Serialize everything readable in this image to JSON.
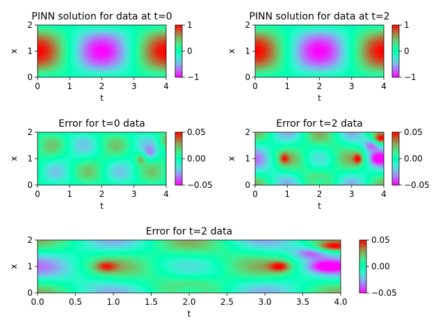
{
  "chart_data": [
    {
      "type": "heatmap",
      "title": "PINN solution for data at t=0",
      "xlabel": "t",
      "ylabel": "x",
      "field": "solution",
      "xlim": [
        0,
        4
      ],
      "ylim": [
        0,
        2
      ],
      "xticks": [
        "0",
        "1",
        "2",
        "3",
        "4"
      ],
      "yticks": [
        "0",
        "1",
        "2"
      ],
      "clim": [
        -1,
        1
      ],
      "cticks": [
        "−1",
        "0",
        "1"
      ],
      "colormap": "rainbow"
    },
    {
      "type": "heatmap",
      "title": "PINN solution for data at t=2",
      "xlabel": "t",
      "ylabel": "x",
      "field": "solution",
      "xlim": [
        0,
        4
      ],
      "ylim": [
        0,
        2
      ],
      "xticks": [
        "0",
        "1",
        "2",
        "3",
        "4"
      ],
      "yticks": [
        "0",
        "1",
        "2"
      ],
      "clim": [
        -1,
        1
      ],
      "cticks": [
        "−1",
        "0",
        "1"
      ],
      "colormap": "rainbow"
    },
    {
      "type": "heatmap",
      "title": "Error for t=0 data",
      "xlabel": "t",
      "ylabel": "x",
      "field": "error_t0",
      "xlim": [
        0,
        4
      ],
      "ylim": [
        0,
        2
      ],
      "xticks": [
        "0",
        "1",
        "2",
        "3",
        "4"
      ],
      "yticks": [
        "0",
        "1",
        "2"
      ],
      "clim": [
        -0.05,
        0.05
      ],
      "cticks": [
        "−0.05",
        "0.00",
        "0.05"
      ],
      "colormap": "rainbow"
    },
    {
      "type": "heatmap",
      "title": "Error for t=2 data",
      "xlabel": "t",
      "ylabel": "x",
      "field": "error_t2",
      "xlim": [
        0,
        4
      ],
      "ylim": [
        0,
        2
      ],
      "xticks": [
        "0",
        "1",
        "2",
        "3",
        "4"
      ],
      "yticks": [
        "0",
        "1",
        "2"
      ],
      "clim": [
        -0.05,
        0.05
      ],
      "cticks": [
        "−0.05",
        "0.00",
        "0.05"
      ],
      "colormap": "rainbow"
    },
    {
      "type": "heatmap",
      "title": "Error for t=2 data",
      "xlabel": "t",
      "ylabel": "x",
      "field": "error_t2",
      "xlim": [
        0,
        4
      ],
      "ylim": [
        0,
        2
      ],
      "xticks": [
        "0.0",
        "0.5",
        "1.0",
        "1.5",
        "2.0",
        "2.5",
        "3.0",
        "3.5",
        "4.0"
      ],
      "yticks": [
        "0",
        "1",
        "2"
      ],
      "clim": [
        -0.05,
        0.05
      ],
      "cticks": [
        "−0.05",
        "0.00",
        "0.05"
      ],
      "colormap": "rainbow"
    }
  ]
}
